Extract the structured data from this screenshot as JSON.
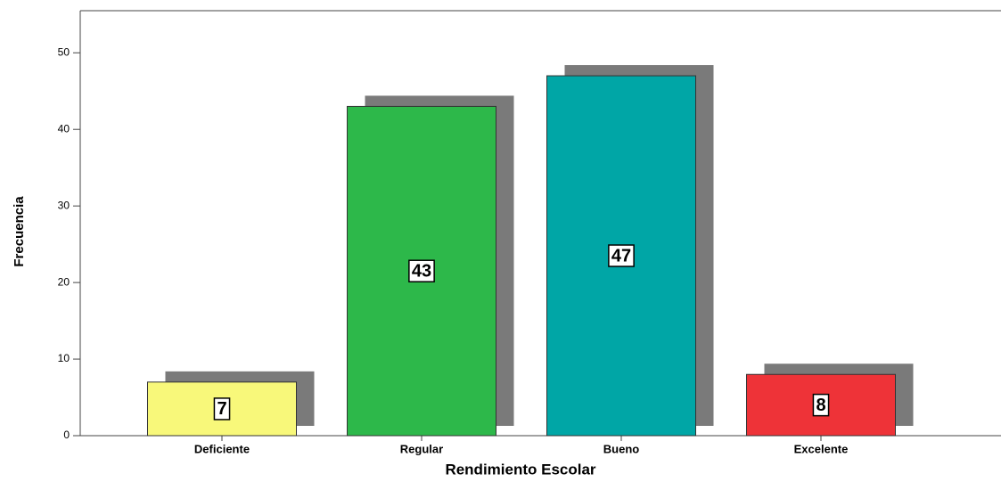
{
  "chart_data": {
    "type": "bar",
    "x_label": "Rendimiento Escolar",
    "y_label": "Frecuencia",
    "categories": [
      "Deficiente",
      "Regular",
      "Bueno",
      "Excelente"
    ],
    "values": [
      7,
      43,
      47,
      8
    ],
    "colors": [
      "#f8f87a",
      "#2db84a",
      "#00a6a6",
      "#ee3338"
    ],
    "ylim": [
      0,
      55.5
    ],
    "yticks": [
      0,
      10,
      20,
      30,
      40,
      50
    ],
    "grid": false
  }
}
